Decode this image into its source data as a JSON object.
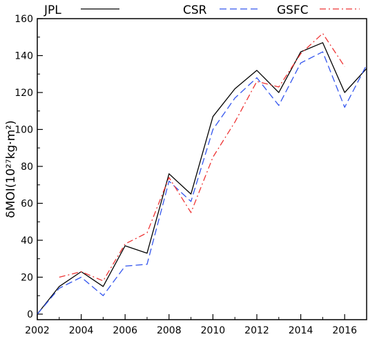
{
  "chart_data": {
    "type": "line",
    "xlabel": "",
    "ylabel": "δMOI(10²⁷kg·m²)",
    "xlim": [
      2002,
      2017
    ],
    "ylim": [
      -3,
      160
    ],
    "x_ticks": [
      2002,
      2004,
      2006,
      2008,
      2010,
      2012,
      2014,
      2016
    ],
    "y_ticks": [
      0,
      20,
      40,
      60,
      80,
      100,
      120,
      140,
      160
    ],
    "grid": false,
    "legend_position": "top",
    "series": [
      {
        "name": "JPL",
        "color": "#000000",
        "dash": "solid",
        "x": [
          2002,
          2003,
          2004,
          2005,
          2006,
          2007,
          2008,
          2009,
          2010,
          2011,
          2012,
          2013,
          2014,
          2015,
          2016,
          2017
        ],
        "y": [
          0,
          15,
          23,
          15,
          37,
          33,
          76,
          65,
          107,
          122,
          132,
          120,
          142,
          147,
          120,
          133
        ]
      },
      {
        "name": "CSR",
        "color": "#3355ee",
        "dash": "dashed",
        "x": [
          2002,
          2003,
          2004,
          2005,
          2006,
          2007,
          2008,
          2009,
          2010,
          2011,
          2012,
          2013,
          2014,
          2015,
          2016,
          2017
        ],
        "y": [
          0,
          14,
          20,
          10,
          26,
          27,
          72,
          61,
          100,
          117,
          128,
          113,
          136,
          142,
          112,
          135
        ]
      },
      {
        "name": "GSFC",
        "color": "#ee3333",
        "dash": "dashdot",
        "x": [
          2003,
          2004,
          2005,
          2006,
          2007,
          2008,
          2009,
          2010,
          2011,
          2012,
          2013,
          2014,
          2015,
          2016
        ],
        "y": [
          20,
          23,
          18,
          38,
          44,
          74,
          55,
          85,
          104,
          126,
          123,
          141,
          152,
          134
        ]
      }
    ]
  }
}
